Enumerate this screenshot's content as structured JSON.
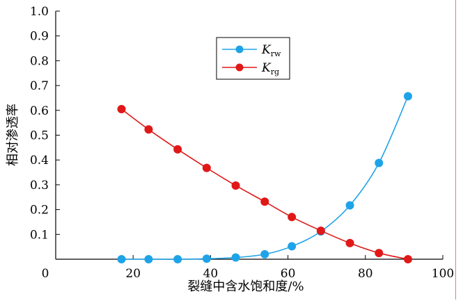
{
  "chart_data": {
    "type": "line",
    "title": "",
    "xlabel": "裂缝中含水饱和度/%",
    "ylabel": "相对渗透率",
    "xlim": [
      0,
      100
    ],
    "ylim": [
      0,
      1.0
    ],
    "x_ticks": [
      0,
      20,
      40,
      60,
      80,
      100
    ],
    "x_tick_labels": [
      "0",
      "20",
      "40",
      "60",
      "80",
      "100"
    ],
    "y_ticks": [
      0.1,
      0.2,
      0.3,
      0.4,
      0.5,
      0.6,
      0.7,
      0.8,
      0.9,
      1.0
    ],
    "y_tick_labels": [
      "0.1",
      "0.2",
      "0.3",
      "0.4",
      "0.5",
      "0.6",
      "0.7",
      "0.8",
      "0.9",
      "1.0"
    ],
    "grid": false,
    "legend_position": "upper-center",
    "series": [
      {
        "name_main": "K",
        "name_sub": "rw",
        "color": "#1fa3e8",
        "x": [
          17,
          24,
          31.5,
          39,
          46.5,
          54,
          61,
          68.5,
          76,
          83.5,
          91
        ],
        "y": [
          0.0,
          0.0,
          0.0,
          0.002,
          0.007,
          0.02,
          0.052,
          0.112,
          0.217,
          0.388,
          0.657
        ]
      },
      {
        "name_main": "K",
        "name_sub": "rg",
        "color": "#e01818",
        "x": [
          17,
          24,
          31.5,
          39,
          46.5,
          54,
          61,
          68.5,
          76,
          83.5,
          91
        ],
        "y": [
          0.605,
          0.523,
          0.443,
          0.368,
          0.297,
          0.232,
          0.17,
          0.115,
          0.065,
          0.025,
          0.0
        ]
      }
    ]
  }
}
